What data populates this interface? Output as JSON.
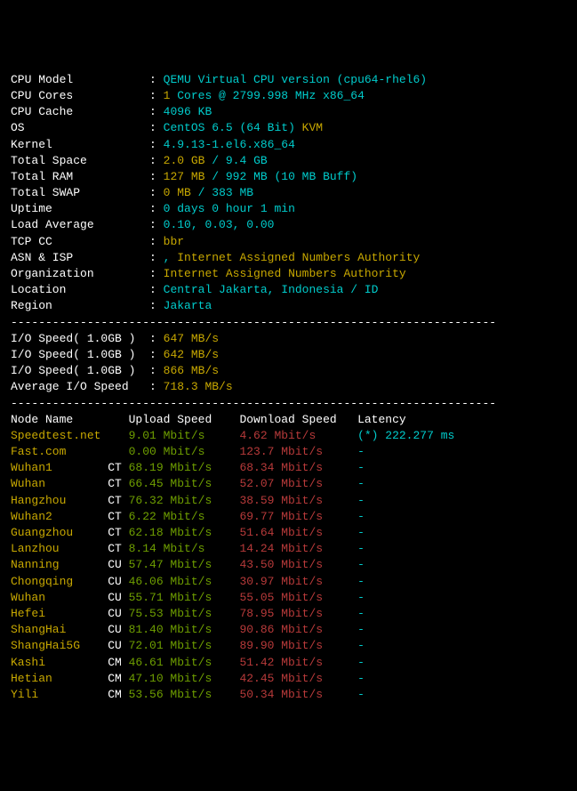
{
  "colors": {
    "background": "#000000",
    "white": "#ffffff",
    "cyan": "#00cccc",
    "yellow": "#c8a800",
    "green": "#6f9f00",
    "red": "#b83a3a",
    "gray": "#555555"
  },
  "sysinfo": {
    "labels": {
      "cpu_model": "CPU Model",
      "cpu_cores": "CPU Cores",
      "cpu_cache": "CPU Cache",
      "os": "OS",
      "kernel": "Kernel",
      "total_space": "Total Space",
      "total_ram": "Total RAM",
      "total_swap": "Total SWAP",
      "uptime": "Uptime",
      "load_avg": "Load Average",
      "tcp_cc": "TCP CC",
      "asn_isp": "ASN & ISP",
      "organization": "Organization",
      "location": "Location",
      "region": "Region"
    },
    "cpu_model": "QEMU Virtual CPU version (cpu64-rhel6)",
    "cpu_cores_count": "1",
    "cpu_cores_detail": " Cores @ 2799.998 MHz x86_64",
    "cpu_cache": "4096 KB",
    "os_name": "CentOS 6.5 (64 Bit) ",
    "os_virt": "KVM",
    "kernel": "4.9.13-1.el6.x86_64",
    "space_used": "2.0 GB",
    "space_sep": " / ",
    "space_total": "9.4 GB",
    "ram_used": "127 MB",
    "ram_sep": " / ",
    "ram_total": "992 MB",
    "ram_buff": " (10 MB Buff)",
    "swap_used": "0 MB",
    "swap_sep": " / ",
    "swap_total": "383 MB",
    "uptime": "0 days 0 hour 1 min",
    "load_avg": "0.10, 0.03, 0.00",
    "tcp_cc": "bbr",
    "asn_sep": ", ",
    "asn_isp": "Internet Assigned Numbers Authority",
    "organization": "Internet Assigned Numbers Authority",
    "location": "Central Jakarta, Indonesia / ID",
    "region": "Jakarta"
  },
  "divider": "----------------------------------------------------------------------",
  "io": {
    "label": "I/O Speed( 1.0GB )",
    "avg_label": "Average I/O Speed",
    "r1": "647 MB/s",
    "r2": "642 MB/s",
    "r3": "866 MB/s",
    "avg": "718.3 MB/s"
  },
  "speedtest": {
    "headers": {
      "node": "Node Name",
      "up": "Upload Speed",
      "down": "Download Speed",
      "lat": "Latency"
    },
    "rows": [
      {
        "name": "Speedtest.net",
        "tag": "",
        "up": "9.01 Mbit/s",
        "down": "4.62 Mbit/s",
        "lat": "(*) 222.277 ms"
      },
      {
        "name": "Fast.com",
        "tag": "",
        "up": "0.00 Mbit/s",
        "down": "123.7 Mbit/s",
        "lat": "-"
      },
      {
        "name": "Wuhan1",
        "tag": "CT",
        "up": "68.19 Mbit/s",
        "down": "68.34 Mbit/s",
        "lat": "-"
      },
      {
        "name": "Wuhan",
        "tag": "CT",
        "up": "66.45 Mbit/s",
        "down": "52.07 Mbit/s",
        "lat": "-"
      },
      {
        "name": "Hangzhou",
        "tag": "CT",
        "up": "76.32 Mbit/s",
        "down": "38.59 Mbit/s",
        "lat": "-"
      },
      {
        "name": "Wuhan2",
        "tag": "CT",
        "up": "6.22 Mbit/s",
        "down": "69.77 Mbit/s",
        "lat": "-"
      },
      {
        "name": "Guangzhou",
        "tag": "CT",
        "up": "62.18 Mbit/s",
        "down": "51.64 Mbit/s",
        "lat": "-"
      },
      {
        "name": "Lanzhou",
        "tag": "CT",
        "up": "8.14 Mbit/s",
        "down": "14.24 Mbit/s",
        "lat": "-"
      },
      {
        "name": "Nanning",
        "tag": "CU",
        "up": "57.47 Mbit/s",
        "down": "43.50 Mbit/s",
        "lat": "-"
      },
      {
        "name": "Chongqing",
        "tag": "CU",
        "up": "46.06 Mbit/s",
        "down": "30.97 Mbit/s",
        "lat": "-"
      },
      {
        "name": "Wuhan",
        "tag": "CU",
        "up": "55.71 Mbit/s",
        "down": "55.05 Mbit/s",
        "lat": "-"
      },
      {
        "name": "Hefei",
        "tag": "CU",
        "up": "75.53 Mbit/s",
        "down": "78.95 Mbit/s",
        "lat": "-"
      },
      {
        "name": "ShangHai",
        "tag": "CU",
        "up": "81.40 Mbit/s",
        "down": "90.86 Mbit/s",
        "lat": "-"
      },
      {
        "name": "ShangHai5G",
        "tag": "CU",
        "up": "72.01 Mbit/s",
        "down": "89.90 Mbit/s",
        "lat": "-"
      },
      {
        "name": "Kashi",
        "tag": "CM",
        "up": "46.61 Mbit/s",
        "down": "51.42 Mbit/s",
        "lat": "-"
      },
      {
        "name": "Hetian",
        "tag": "CM",
        "up": "47.10 Mbit/s",
        "down": "42.45 Mbit/s",
        "lat": "-"
      },
      {
        "name": "Yili",
        "tag": "CM",
        "up": "53.56 Mbit/s",
        "down": "50.34 Mbit/s",
        "lat": "-"
      }
    ]
  },
  "layout": {
    "sys_label_width": 20,
    "sep": ": ",
    "col_node": 14,
    "col_tag": 3,
    "col_up": 16,
    "col_down": 17
  }
}
